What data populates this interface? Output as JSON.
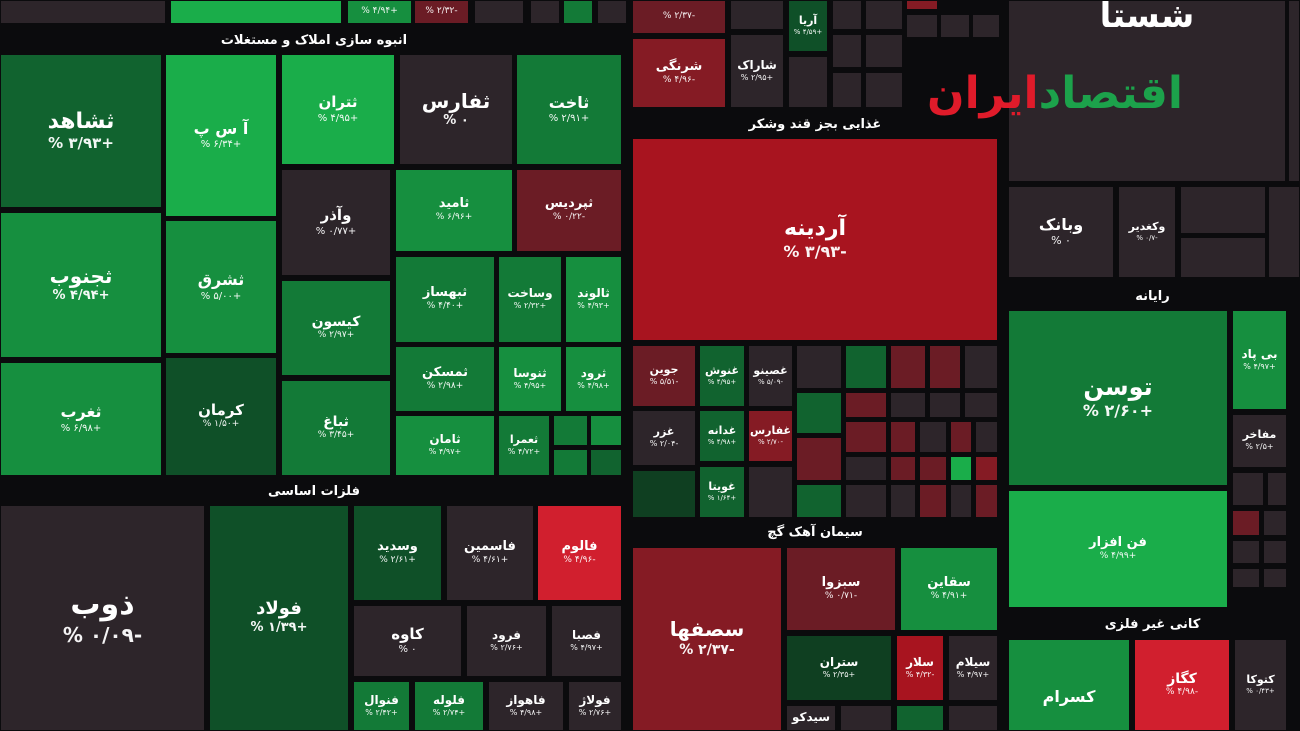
{
  "sections": {
    "construction": "انبوه سازی املاک و مستغلات",
    "metals": "فلزات اساسی",
    "food": "غذایی بجز قند وشکر",
    "cement": "سیمان آهک گچ",
    "computer": "رایانه",
    "nonmetal": "کانی غیر فلزی"
  },
  "logo": {
    "part_green": "اقتصاد",
    "part_red": "ایران"
  },
  "t": {
    "shahed": {
      "n": "ثشاهد",
      "p": "+۳/۹۳ %"
    },
    "asp": {
      "n": "آ س پ",
      "p": "+۶/۳۴ %"
    },
    "taran": {
      "n": "ثتران",
      "p": "+۴/۹۵ %"
    },
    "tfars": {
      "n": "ثفارس",
      "p": "۰ %"
    },
    "takht": {
      "n": "ثاخت",
      "p": "+۲/۹۱ %"
    },
    "jonub": {
      "n": "ثجنوب",
      "p": "+۴/۹۴ %"
    },
    "shargh": {
      "n": "ثشرق",
      "p": "+۵/۰۰ %"
    },
    "vazar": {
      "n": "وآذر",
      "p": "+۰/۷۷ %"
    },
    "tamid": {
      "n": "ثامید",
      "p": "+۶/۹۶ %"
    },
    "pardis": {
      "n": "ثپردیس",
      "p": "-۰/۲۲ %"
    },
    "kison": {
      "n": "کیسون",
      "p": "+۲/۹۷ %"
    },
    "behsaz": {
      "n": "ثبهساز",
      "p": "+۴/۴۰ %"
    },
    "vsakht": {
      "n": "وساخت",
      "p": "+۲/۳۲ %"
    },
    "taloud": {
      "n": "ثالوند",
      "p": "+۴/۹۳ %"
    },
    "gharb": {
      "n": "ثغرب",
      "p": "+۶/۹۸ %"
    },
    "kerman": {
      "n": "کرمان",
      "p": "+۱/۵۰ %"
    },
    "tmaskan": {
      "n": "ثمسکن",
      "p": "+۲/۹۸ %"
    },
    "tnosa": {
      "n": "ثنوسا",
      "p": "+۴/۹۵ %"
    },
    "trud": {
      "n": "ثرود",
      "p": "+۴/۹۸ %"
    },
    "tbagh": {
      "n": "ثباغ",
      "p": "+۳/۴۵ %"
    },
    "taman": {
      "n": "ثامان",
      "p": "+۴/۹۷ %"
    },
    "tamra": {
      "n": "ثعمرا",
      "p": "+۴/۷۲ %"
    },
    "zob": {
      "n": "ذوب",
      "p": "-۰/۰۹ %"
    },
    "foulad": {
      "n": "فولاد",
      "p": "+۱/۳۹ %"
    },
    "vsadid": {
      "n": "وسدید",
      "p": "+۲/۶۱ %"
    },
    "fasmin": {
      "n": "فاسمین",
      "p": "+۴/۶۱ %"
    },
    "faloum": {
      "n": "فالوم",
      "p": "-۴/۹۶ %"
    },
    "kaveh": {
      "n": "کاوه",
      "p": "۰ %"
    },
    "foroud": {
      "n": "فرود",
      "p": "+۲/۷۶ %"
    },
    "fesba": {
      "n": "فصبا",
      "p": "+۴/۹۷ %"
    },
    "fnoval": {
      "n": "فنوال",
      "p": "+۲/۴۲ %"
    },
    "floleh": {
      "n": "فلوله",
      "p": "+۲/۷۴ %"
    },
    "fahvaz": {
      "n": "فاهواز",
      "p": "+۴/۹۸ %"
    },
    "folaz": {
      "n": "فولاژ",
      "p": "+۲/۷۶ %"
    },
    "sharangi": {
      "n": "شرنگی",
      "p": "-۴/۹۶ %"
    },
    "sharak": {
      "n": "شاراک",
      "p": "+۲/۹۵ %"
    },
    "arya": {
      "n": "آریا",
      "p": "+۴/۵۹ %"
    },
    "top1": {
      "n": "",
      "p": "+۴/۹۴ %"
    },
    "top2": {
      "n": "",
      "p": "-۲/۳۲ %"
    },
    "top3": {
      "n": "",
      "p": "-۲/۳۷ %"
    },
    "ardine": {
      "n": "آردینه",
      "p": "-۳/۹۳ %"
    },
    "joyin": {
      "n": "جوین",
      "p": "-۵/۵۱ %"
    },
    "ghnoush": {
      "n": "غنوش",
      "p": "+۴/۹۵ %"
    },
    "gsino": {
      "n": "غصینو",
      "p": "-۵/۰۹ %"
    },
    "ghzar": {
      "n": "غزر",
      "p": "-۲/۰۴ %"
    },
    "gdane": {
      "n": "غدانه",
      "p": "+۴/۹۸ %"
    },
    "gfars": {
      "n": "غفارس",
      "p": "-۲/۷۰ %"
    },
    "gvita": {
      "n": "غویتا",
      "p": "+۱/۶۴ %"
    },
    "shasta": {
      "n": "شستا",
      "p": ""
    },
    "vbank": {
      "n": "وبانک",
      "p": "۰ %"
    },
    "vghadir": {
      "n": "وکغدیر",
      "p": "-۰/۷ %"
    },
    "tosan": {
      "n": "توسن",
      "p": "+۲/۶۰ %"
    },
    "bpad": {
      "n": "بی پاد",
      "p": "+۴/۹۷ %"
    },
    "mfakher": {
      "n": "مفاخر",
      "p": "+۲/۵ %"
    },
    "fanafzar": {
      "n": "فن افزار",
      "p": "+۴/۹۹ %"
    },
    "sofaha": {
      "n": "سصفها",
      "p": "-۲/۳۷ %"
    },
    "sbzva": {
      "n": "سبزوا",
      "p": "-۰/۷۱ %"
    },
    "saghain": {
      "n": "سقاین",
      "p": "+۴/۹۱ %"
    },
    "sataran": {
      "n": "ستران",
      "p": "+۲/۳۵ %"
    },
    "salar": {
      "n": "سلار",
      "p": "-۴/۳۲ %"
    },
    "selam": {
      "n": "سیلام",
      "p": "+۴/۹۷ %"
    },
    "sidko": {
      "n": "سیدکو",
      "p": ""
    },
    "kseram": {
      "n": "کسرام",
      "p": ""
    },
    "kgaz": {
      "n": "کگاز",
      "p": "-۴/۹۸ %"
    },
    "ktoka": {
      "n": "کتوکا",
      "p": "+۰/۴۳ %"
    }
  }
}
